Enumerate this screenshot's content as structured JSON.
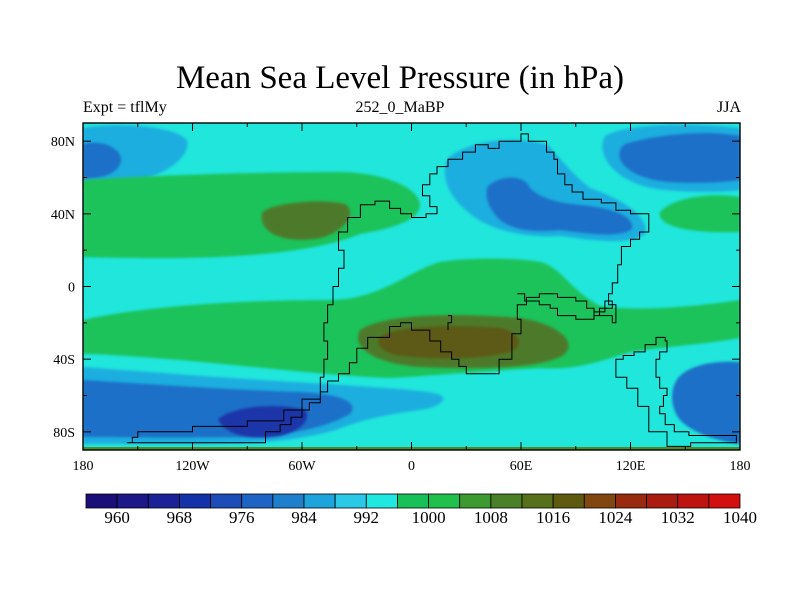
{
  "chart_data": {
    "type": "heatmap",
    "title": "Mean Sea Level Pressure (in hPa)",
    "subtitle_left": "Expt = tflMy",
    "subtitle_center": "252_0_MaBP",
    "subtitle_right": "JJA",
    "xlim": [
      -180,
      180
    ],
    "ylim": [
      -90,
      90
    ],
    "x_ticks": [
      {
        "value": -180,
        "label": "180"
      },
      {
        "value": -120,
        "label": "120W"
      },
      {
        "value": -60,
        "label": "60W"
      },
      {
        "value": 0,
        "label": "0"
      },
      {
        "value": 60,
        "label": "60E"
      },
      {
        "value": 120,
        "label": "120E"
      },
      {
        "value": 180,
        "label": "180"
      }
    ],
    "y_ticks": [
      {
        "value": 80,
        "label": "80N"
      },
      {
        "value": 40,
        "label": "40N"
      },
      {
        "value": 0,
        "label": "0"
      },
      {
        "value": -40,
        "label": "40S"
      },
      {
        "value": -80,
        "label": "80S"
      }
    ],
    "colorbar": {
      "levels": [
        960,
        964,
        968,
        972,
        976,
        980,
        984,
        988,
        992,
        996,
        1000,
        1004,
        1008,
        1012,
        1016,
        1020,
        1024,
        1028,
        1032,
        1036,
        1040
      ],
      "labeled": [
        "960",
        "968",
        "976",
        "984",
        "992",
        "1000",
        "1008",
        "1016",
        "1024",
        "1032",
        "1040"
      ],
      "colors": [
        "#1a0e78",
        "#1c1888",
        "#1b2298",
        "#1432a8",
        "#1c4cb8",
        "#1e64c4",
        "#1e80cc",
        "#1ea4dc",
        "#2cc8e8",
        "#20e8e0",
        "#18c058",
        "#20c04c",
        "#3c9a30",
        "#4a8028",
        "#56701c",
        "#5e5a10",
        "#804810",
        "#982a10",
        "#aa1c10",
        "#be1410",
        "#d21010"
      ]
    },
    "fields": [
      {
        "name": "background",
        "hpa": 1004,
        "color": "#21e6dc"
      },
      {
        "name": "arctic-low-west",
        "hpa": 990,
        "color": "#1eaedf"
      },
      {
        "name": "arctic-low-west-core",
        "hpa": 986,
        "color": "#1e6fc7"
      },
      {
        "name": "arctic-low-east",
        "hpa": 990,
        "color": "#1eaedf"
      },
      {
        "name": "arctic-low-east-core",
        "hpa": 986,
        "color": "#1e6fc7"
      },
      {
        "name": "nh-subtropical-high-pacific",
        "hpa": 1008,
        "color": "#1ec25a"
      },
      {
        "name": "nh-subtropical-high-core",
        "hpa": 1014,
        "color": "#4e7a2a"
      },
      {
        "name": "nh-high-east",
        "hpa": 1008,
        "color": "#1ec25a"
      },
      {
        "name": "asian-low",
        "hpa": 992,
        "color": "#1eaedf"
      },
      {
        "name": "asian-low-core",
        "hpa": 986,
        "color": "#1e6fc7"
      },
      {
        "name": "sh-subtropical-high-belt",
        "hpa": 1008,
        "color": "#1ec25a"
      },
      {
        "name": "sh-subtropical-high-core",
        "hpa": 1014,
        "color": "#4e7a2a"
      },
      {
        "name": "sh-subtropical-high-max",
        "hpa": 1016,
        "color": "#5c5a14"
      },
      {
        "name": "southern-ocean-low",
        "hpa": 990,
        "color": "#1eaedf"
      },
      {
        "name": "southern-ocean-low-mid",
        "hpa": 984,
        "color": "#1e6fc7"
      },
      {
        "name": "southern-ocean-low-core",
        "hpa": 978,
        "color": "#1a36a8"
      },
      {
        "name": "southern-ocean-low-east",
        "hpa": 984,
        "color": "#1e6fc7"
      },
      {
        "name": "antarctic-high",
        "hpa": 1010,
        "color": "#4c8c2c"
      }
    ],
    "coastline": [
      [
        -156,
        -86
      ],
      [
        -153,
        -86
      ],
      [
        -153,
        -83
      ],
      [
        -150,
        -83
      ],
      [
        -150,
        -80
      ],
      [
        -120,
        -80
      ],
      [
        -120,
        -77
      ],
      [
        -90,
        -77
      ],
      [
        -90,
        -74
      ],
      [
        -70,
        -74
      ],
      [
        -70,
        -68
      ],
      [
        -60,
        -68
      ],
      [
        -60,
        -62
      ],
      [
        -50,
        -62
      ],
      [
        -50,
        -50
      ],
      [
        -48,
        -50
      ],
      [
        -48,
        -40
      ],
      [
        -46,
        -40
      ],
      [
        -46,
        -30
      ],
      [
        -48,
        -30
      ],
      [
        -48,
        -20
      ],
      [
        -46,
        -20
      ],
      [
        -46,
        -10
      ],
      [
        -43,
        -10
      ],
      [
        -43,
        0
      ],
      [
        -40,
        0
      ],
      [
        -40,
        10
      ],
      [
        -37,
        10
      ],
      [
        -37,
        20
      ],
      [
        -40,
        20
      ],
      [
        -40,
        30
      ],
      [
        -35,
        30
      ],
      [
        -35,
        38
      ],
      [
        -28,
        38
      ],
      [
        -28,
        45
      ],
      [
        -20,
        45
      ],
      [
        -20,
        47
      ],
      [
        -12,
        47
      ],
      [
        -12,
        43
      ],
      [
        -6,
        43
      ],
      [
        -6,
        40
      ],
      [
        0,
        40
      ],
      [
        0,
        38
      ],
      [
        8,
        38
      ],
      [
        8,
        40
      ],
      [
        14,
        40
      ],
      [
        14,
        44
      ],
      [
        10,
        44
      ],
      [
        10,
        50
      ],
      [
        6,
        50
      ],
      [
        6,
        56
      ],
      [
        10,
        56
      ],
      [
        10,
        62
      ],
      [
        14,
        62
      ],
      [
        14,
        66
      ],
      [
        20,
        66
      ],
      [
        20,
        70
      ],
      [
        28,
        70
      ],
      [
        28,
        74
      ],
      [
        35,
        74
      ],
      [
        35,
        78
      ],
      [
        42,
        78
      ],
      [
        42,
        76
      ],
      [
        48,
        76
      ],
      [
        48,
        80
      ],
      [
        60,
        80
      ],
      [
        60,
        84
      ],
      [
        64,
        84
      ],
      [
        64,
        80
      ],
      [
        74,
        80
      ],
      [
        74,
        74
      ],
      [
        78,
        74
      ],
      [
        78,
        70
      ],
      [
        80,
        70
      ],
      [
        80,
        62
      ],
      [
        84,
        62
      ],
      [
        84,
        56
      ],
      [
        88,
        56
      ],
      [
        88,
        52
      ],
      [
        94,
        52
      ],
      [
        94,
        48
      ],
      [
        104,
        48
      ],
      [
        104,
        46
      ],
      [
        112,
        46
      ],
      [
        112,
        42
      ],
      [
        120,
        42
      ],
      [
        120,
        40
      ],
      [
        130,
        40
      ],
      [
        130,
        30
      ],
      [
        125,
        30
      ],
      [
        125,
        26
      ],
      [
        120,
        26
      ],
      [
        120,
        22
      ],
      [
        115,
        22
      ],
      [
        115,
        12
      ],
      [
        113,
        12
      ],
      [
        113,
        2
      ],
      [
        110,
        2
      ],
      [
        110,
        -4
      ],
      [
        108,
        -4
      ],
      [
        108,
        -10
      ],
      [
        112,
        -10
      ],
      [
        112,
        -20
      ],
      [
        110,
        -20
      ],
      [
        110,
        -16
      ],
      [
        100,
        -16
      ],
      [
        100,
        -12
      ],
      [
        96,
        -12
      ],
      [
        96,
        -8
      ],
      [
        90,
        -8
      ],
      [
        90,
        -6
      ],
      [
        80,
        -6
      ],
      [
        80,
        -4
      ],
      [
        70,
        -4
      ],
      [
        70,
        -6
      ],
      [
        63,
        -6
      ],
      [
        63,
        -10
      ],
      [
        58,
        -10
      ],
      [
        58,
        -18
      ],
      [
        60,
        -18
      ],
      [
        60,
        -26
      ],
      [
        55,
        -26
      ],
      [
        55,
        -40
      ],
      [
        48,
        -40
      ],
      [
        48,
        -48
      ],
      [
        30,
        -48
      ],
      [
        30,
        -44
      ],
      [
        26,
        -44
      ],
      [
        26,
        -40
      ],
      [
        22,
        -40
      ],
      [
        22,
        -36
      ],
      [
        16,
        -36
      ],
      [
        16,
        -30
      ],
      [
        10,
        -30
      ],
      [
        10,
        -24
      ],
      [
        0,
        -24
      ],
      [
        0,
        -20
      ],
      [
        -6,
        -20
      ],
      [
        -6,
        -22
      ],
      [
        -12,
        -22
      ],
      [
        -12,
        -28
      ],
      [
        -24,
        -28
      ],
      [
        -24,
        -34
      ],
      [
        -30,
        -34
      ],
      [
        -30,
        -42
      ],
      [
        -34,
        -42
      ],
      [
        -34,
        -48
      ],
      [
        -40,
        -48
      ],
      [
        -40,
        -52
      ],
      [
        -46,
        -52
      ],
      [
        -46,
        -58
      ],
      [
        -50,
        -58
      ],
      [
        -50,
        -64
      ],
      [
        -56,
        -64
      ],
      [
        -56,
        -68
      ],
      [
        -60,
        -68
      ],
      [
        -60,
        -72
      ],
      [
        -66,
        -72
      ],
      [
        -66,
        -76
      ],
      [
        -72,
        -76
      ],
      [
        -72,
        -80
      ],
      [
        -80,
        -80
      ],
      [
        -80,
        -86
      ],
      [
        -156,
        -86
      ]
    ],
    "coastline_2": [
      [
        112,
        -45
      ],
      [
        112,
        -40
      ],
      [
        116,
        -40
      ],
      [
        116,
        -38
      ],
      [
        122,
        -38
      ],
      [
        122,
        -36
      ],
      [
        128,
        -36
      ],
      [
        128,
        -32
      ],
      [
        134,
        -32
      ],
      [
        134,
        -28
      ],
      [
        139,
        -28
      ],
      [
        139,
        -30
      ],
      [
        140,
        -30
      ],
      [
        140,
        -36
      ],
      [
        136,
        -36
      ],
      [
        136,
        -40
      ],
      [
        134,
        -40
      ],
      [
        134,
        -50
      ],
      [
        136,
        -50
      ],
      [
        136,
        -56
      ],
      [
        140,
        -56
      ],
      [
        140,
        -60
      ],
      [
        138,
        -60
      ],
      [
        138,
        -66
      ],
      [
        136,
        -66
      ],
      [
        136,
        -70
      ],
      [
        139,
        -70
      ],
      [
        139,
        -76
      ],
      [
        144,
        -76
      ],
      [
        144,
        -80
      ],
      [
        152,
        -80
      ],
      [
        152,
        -82
      ],
      [
        178,
        -82
      ],
      [
        178,
        -86
      ],
      [
        153,
        -86
      ],
      [
        153,
        -88
      ],
      [
        140,
        -88
      ],
      [
        140,
        -80
      ],
      [
        130,
        -80
      ],
      [
        130,
        -66
      ],
      [
        124,
        -66
      ],
      [
        124,
        -56
      ],
      [
        118,
        -56
      ],
      [
        118,
        -50
      ],
      [
        112,
        -50
      ],
      [
        112,
        -45
      ]
    ],
    "coastline_3": [
      [
        58,
        -4
      ],
      [
        62,
        -4
      ],
      [
        62,
        -8
      ],
      [
        70,
        -8
      ],
      [
        70,
        -10
      ],
      [
        76,
        -10
      ],
      [
        76,
        -12
      ],
      [
        80,
        -12
      ],
      [
        80,
        -16
      ],
      [
        90,
        -16
      ],
      [
        90,
        -18
      ],
      [
        100,
        -18
      ],
      [
        100,
        -14
      ],
      [
        106,
        -14
      ],
      [
        106,
        -8
      ],
      [
        110,
        -8
      ],
      [
        110,
        -12
      ],
      [
        103,
        -12
      ],
      [
        103,
        -16
      ]
    ],
    "coastline_4": [
      [
        20,
        -16
      ],
      [
        22,
        -16
      ],
      [
        22,
        -20
      ],
      [
        20,
        -20
      ],
      [
        20,
        -24
      ]
    ]
  }
}
